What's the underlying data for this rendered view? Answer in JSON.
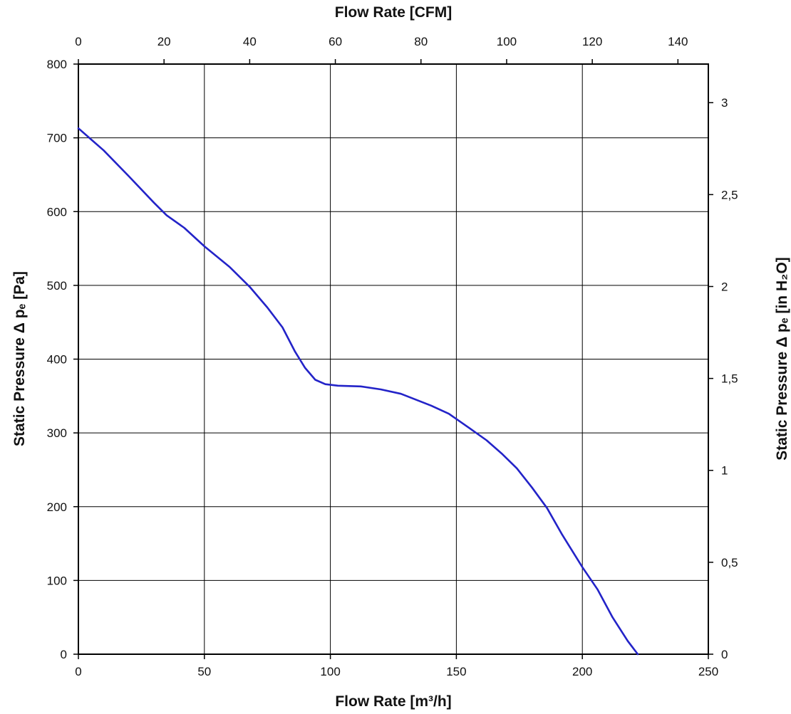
{
  "chart_data": {
    "type": "line",
    "x_label_bottom": "Flow Rate [m³/h]",
    "x_label_top": "Flow Rate [CFM]",
    "y_label_left": "Static Pressure Δ pₑ [Pa]",
    "y_label_right": "Static Pressure Δ pₑ [in H₂O]",
    "x_bottom": {
      "min": 0,
      "max": 250,
      "ticks": [
        "0",
        "50",
        "100",
        "150",
        "200",
        "250"
      ]
    },
    "x_top": {
      "min": 0,
      "max": 147.1,
      "ticks": [
        "0",
        "20",
        "40",
        "60",
        "80",
        "100",
        "120",
        "140"
      ]
    },
    "y_left": {
      "min": 0,
      "max": 800,
      "ticks": [
        "0",
        "100",
        "200",
        "300",
        "400",
        "500",
        "600",
        "700",
        "800"
      ]
    },
    "y_right": {
      "min": 0,
      "max": 3.21,
      "ticks": [
        "0",
        "0,5",
        "1",
        "1,5",
        "2",
        "2,5",
        "3"
      ]
    },
    "grid": true,
    "line_color": "#2323c8",
    "series": [
      {
        "x": [
          0,
          10,
          20,
          30,
          35,
          42,
          50,
          60,
          68,
          75,
          81,
          86,
          90,
          94,
          98,
          103,
          112,
          120,
          128,
          140,
          147,
          155,
          162,
          168,
          174,
          180,
          186,
          192,
          200,
          206,
          212,
          218,
          222
        ],
        "y": [
          713,
          683,
          648,
          612,
          595,
          578,
          553,
          525,
          498,
          470,
          443,
          410,
          388,
          372,
          366,
          364,
          363,
          359,
          353,
          337,
          326,
          307,
          290,
          272,
          252,
          226,
          198,
          162,
          118,
          88,
          50,
          18,
          0
        ]
      }
    ]
  }
}
